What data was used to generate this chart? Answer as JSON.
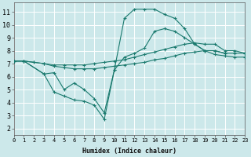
{
  "xlabel": "Humidex (Indice chaleur)",
  "xlim": [
    0,
    23
  ],
  "ylim": [
    1.5,
    11.7
  ],
  "xticks": [
    0,
    1,
    2,
    3,
    4,
    5,
    6,
    7,
    8,
    9,
    10,
    11,
    12,
    13,
    14,
    15,
    16,
    17,
    18,
    19,
    20,
    21,
    22,
    23
  ],
  "yticks": [
    2,
    3,
    4,
    5,
    6,
    7,
    8,
    9,
    10,
    11
  ],
  "background_color": "#cce8ea",
  "grid_color": "#ffffff",
  "line_color": "#1a7a6e",
  "series": [
    {
      "segments": [
        {
          "x": [
            0,
            1,
            3,
            4,
            5,
            6,
            7,
            8,
            9,
            10,
            11,
            12,
            13,
            14,
            15,
            16,
            17,
            18,
            19,
            20,
            21
          ],
          "y": [
            7.2,
            7.2,
            6.2,
            4.8,
            4.5,
            4.2,
            4.1,
            3.8,
            2.7,
            6.5,
            10.5,
            11.2,
            11.2,
            11.2,
            10.8,
            10.5,
            9.7,
            8.5,
            8.0,
            8.0,
            7.8
          ]
        }
      ]
    },
    {
      "segments": [
        {
          "x": [
            0,
            1,
            3,
            4,
            5,
            6,
            7,
            8,
            9,
            10,
            11,
            12,
            13,
            14,
            15,
            16,
            17,
            18,
            19,
            20,
            21,
            22,
            23
          ],
          "y": [
            7.2,
            7.2,
            6.2,
            6.3,
            5.0,
            5.5,
            5.0,
            4.3,
            3.2,
            6.5,
            7.5,
            7.8,
            8.2,
            9.5,
            9.7,
            9.5,
            9.0,
            8.5,
            8.0,
            8.0,
            7.8,
            7.8,
            7.8
          ]
        }
      ]
    },
    {
      "segments": [
        {
          "x": [
            0,
            1,
            2,
            3,
            4,
            5,
            6,
            7,
            8,
            9,
            10,
            11,
            12,
            13,
            14,
            15,
            16,
            17,
            18,
            19,
            20,
            21,
            22,
            23
          ],
          "y": [
            7.2,
            7.2,
            7.1,
            7.0,
            6.9,
            6.9,
            6.9,
            6.9,
            7.0,
            7.1,
            7.2,
            7.3,
            7.5,
            7.7,
            7.9,
            8.1,
            8.3,
            8.5,
            8.6,
            8.5,
            8.5,
            8.0,
            8.0,
            7.8
          ]
        }
      ]
    },
    {
      "segments": [
        {
          "x": [
            0,
            1,
            2,
            3,
            4,
            5,
            6,
            7,
            8,
            9,
            10,
            11,
            12,
            13,
            14,
            15,
            16,
            17,
            18,
            19,
            20,
            21,
            22,
            23
          ],
          "y": [
            7.2,
            7.2,
            7.1,
            7.0,
            6.8,
            6.7,
            6.6,
            6.6,
            6.6,
            6.7,
            6.8,
            6.9,
            7.0,
            7.1,
            7.3,
            7.4,
            7.6,
            7.8,
            7.9,
            8.0,
            7.7,
            7.6,
            7.5,
            7.5
          ]
        }
      ]
    }
  ]
}
